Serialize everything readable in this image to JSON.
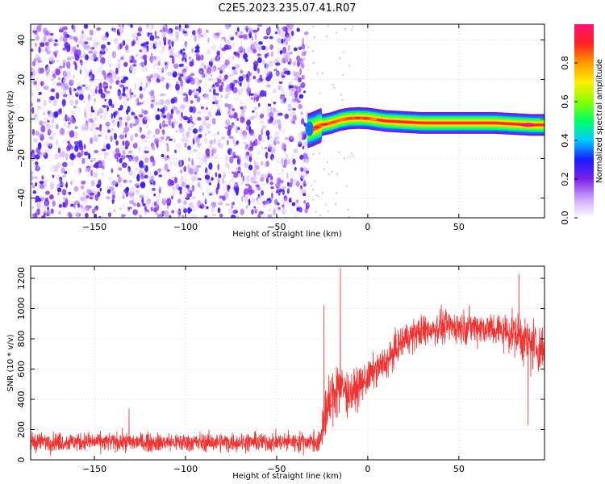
{
  "title": "C2E5.2023.235.07.41.R07",
  "colors": {
    "snr_line": "#ee3333",
    "frame": "#000000",
    "grid": "#bbbbbb"
  },
  "chart_data": [
    {
      "type": "heatmap",
      "xlabel": "Height of straight line (km)",
      "ylabel": "Frequency (Hz)",
      "xlim": [
        -185,
        97
      ],
      "ylim": [
        -50,
        48
      ],
      "x_ticks": [
        -150,
        -100,
        -50,
        0,
        50
      ],
      "y_ticks": [
        40,
        20,
        0,
        -20,
        -40
      ],
      "colorbar": {
        "label": "Normalized spectral amplitude",
        "range": [
          0,
          1
        ],
        "ticks": [
          0.0,
          0.2,
          0.4,
          0.6,
          0.8
        ],
        "colormap": [
          "#ffffff",
          "#c9a3ff",
          "#7b20e8",
          "#1a1aff",
          "#00ccff",
          "#00ff66",
          "#88ff00",
          "#ffee00",
          "#ff9900",
          "#ff2222",
          "#ff1177"
        ]
      },
      "noise_region": {
        "x": [
          -185,
          -33
        ],
        "amplitude": "low (0.1-0.3) random speckle"
      },
      "signal_track": {
        "x": [
          -33,
          -30,
          -25,
          -20,
          -15,
          -10,
          -5,
          0,
          10,
          20,
          30,
          40,
          50,
          60,
          70,
          80,
          90,
          97
        ],
        "frequency": [
          -6,
          -5,
          -3,
          -2,
          -0.5,
          0.3,
          0.5,
          0.3,
          -1,
          -1.5,
          -2,
          -2,
          -2,
          -2,
          -2,
          -2.5,
          -3,
          -3
        ],
        "amplitude": [
          0.3,
          0.45,
          0.55,
          0.65,
          0.72,
          0.78,
          0.82,
          0.85,
          0.88,
          0.9,
          0.92,
          0.92,
          0.92,
          0.92,
          0.9,
          0.88,
          0.85,
          0.8
        ]
      }
    },
    {
      "type": "line",
      "xlabel": "Height of straight line (km)",
      "ylabel": "SNR (10 * v/v)",
      "xlim": [
        -185,
        97
      ],
      "ylim": [
        0,
        1280
      ],
      "x_ticks": [
        -150,
        -100,
        -50,
        0,
        50
      ],
      "y_ticks": [
        0,
        200,
        400,
        600,
        800,
        1000,
        1200
      ],
      "envelope": {
        "x": [
          -185,
          -150,
          -100,
          -50,
          -30,
          -26,
          -24,
          -20,
          -17,
          -15,
          -10,
          -5,
          0,
          5,
          10,
          15,
          20,
          30,
          40,
          50,
          60,
          70,
          80,
          90,
          97
        ],
        "mean": [
          120,
          118,
          115,
          118,
          120,
          110,
          300,
          380,
          500,
          480,
          440,
          480,
          540,
          600,
          640,
          720,
          800,
          850,
          880,
          880,
          880,
          860,
          840,
          760,
          720
        ],
        "noise": [
          80,
          80,
          80,
          80,
          90,
          100,
          280,
          200,
          300,
          220,
          180,
          160,
          140,
          140,
          140,
          140,
          140,
          140,
          140,
          140,
          140,
          150,
          170,
          230,
          200
        ]
      },
      "peaks": [
        {
          "x": -15,
          "y": 1270
        },
        {
          "x": -24,
          "y": 1020
        },
        {
          "x": -131,
          "y": 340
        },
        {
          "x": 83,
          "y": 1230
        },
        {
          "x": 88,
          "y": 230
        }
      ]
    }
  ]
}
